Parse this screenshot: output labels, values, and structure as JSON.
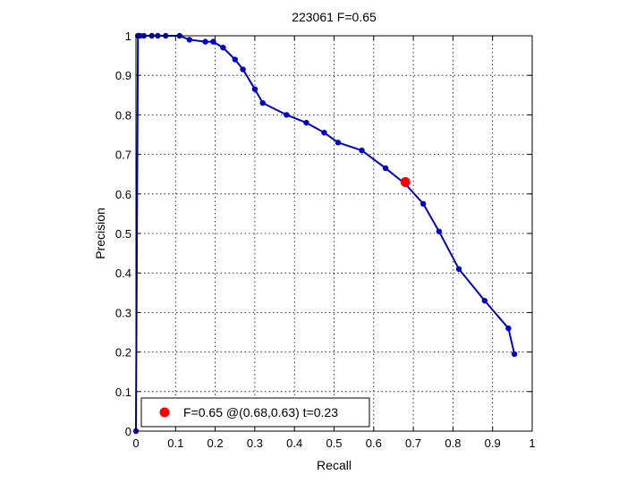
{
  "chart_data": {
    "type": "line",
    "title": "223061 F=0.65",
    "xlabel": "Recall",
    "ylabel": "Precision",
    "xlim": [
      0,
      1
    ],
    "ylim": [
      0,
      1
    ],
    "xticks": [
      "0",
      "0.1",
      "0.2",
      "0.3",
      "0.4",
      "0.5",
      "0.6",
      "0.7",
      "0.8",
      "0.9",
      "1"
    ],
    "yticks": [
      "0",
      "0.1",
      "0.2",
      "0.3",
      "0.4",
      "0.5",
      "0.6",
      "0.7",
      "0.8",
      "0.9",
      "1"
    ],
    "grid": true,
    "legend": {
      "position": "bottom-left",
      "label": "F=0.65 @(0.68,0.63) t=0.23"
    },
    "series": [
      {
        "color": "#0000cc",
        "x": [
          0,
          0.005,
          0.01,
          0.02,
          0.04,
          0.055,
          0.075,
          0.11,
          0.135,
          0.175,
          0.195,
          0.22,
          0.25,
          0.27,
          0.3,
          0.32,
          0.38,
          0.43,
          0.475,
          0.51,
          0.57,
          0.63,
          0.68,
          0.725,
          0.765,
          0.815,
          0.88,
          0.94,
          0.955
        ],
        "y": [
          0,
          1,
          1,
          1,
          1,
          1,
          1,
          1,
          0.99,
          0.985,
          0.985,
          0.97,
          0.94,
          0.915,
          0.865,
          0.83,
          0.8,
          0.78,
          0.755,
          0.73,
          0.71,
          0.665,
          0.625,
          0.575,
          0.505,
          0.41,
          0.33,
          0.26,
          0.195
        ]
      }
    ],
    "highlight": {
      "x": 0.68,
      "y": 0.63,
      "color": "#ff0000"
    }
  }
}
